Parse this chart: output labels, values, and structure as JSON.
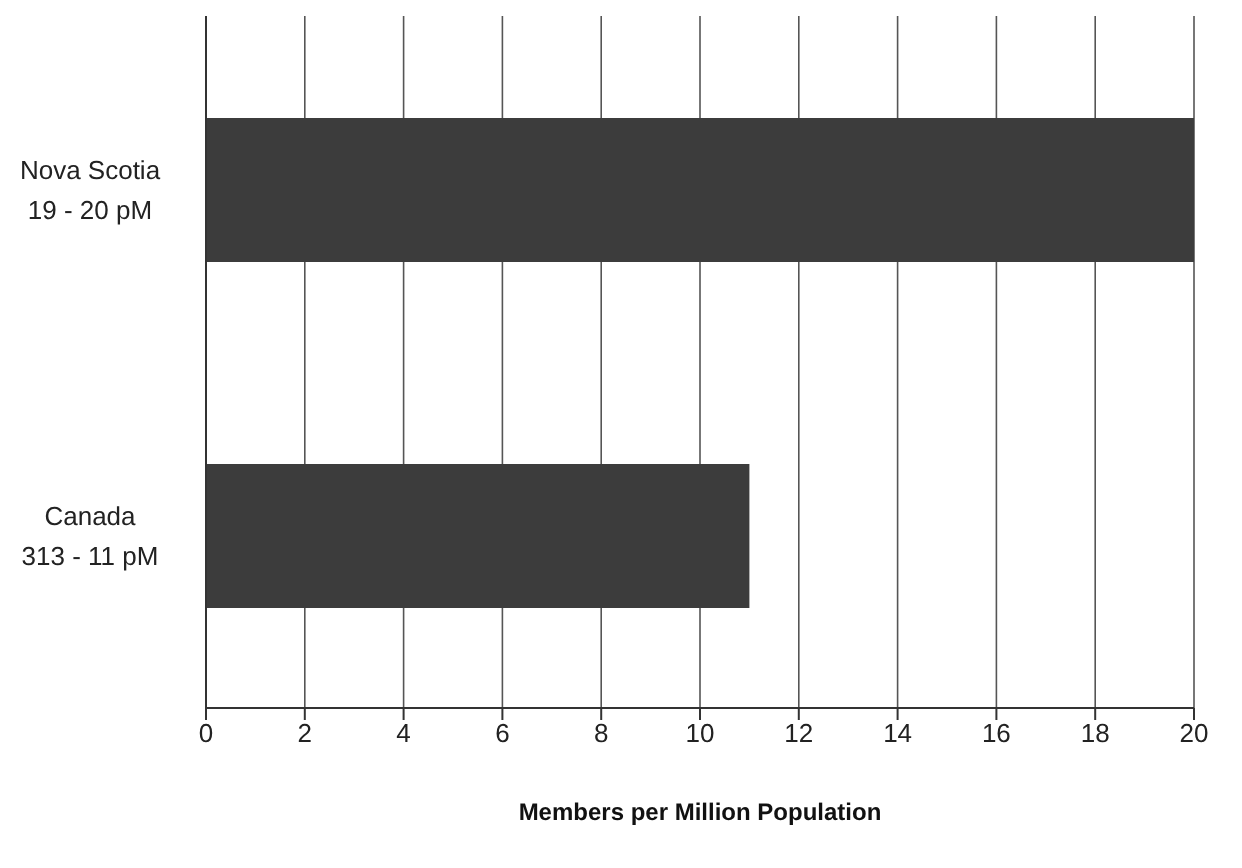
{
  "chart_data": {
    "type": "bar",
    "orientation": "horizontal",
    "categories": [
      "Nova Scotia\n19 - 20 pM",
      "Canada\n313 - 11 pM"
    ],
    "values": [
      20,
      11
    ],
    "color": "#3c3c3c",
    "xlim": [
      0,
      20
    ],
    "xticks": [
      0,
      2,
      4,
      6,
      8,
      10,
      12,
      14,
      16,
      18,
      20
    ],
    "grid": "x",
    "xlabel": "Members per Million Population"
  }
}
